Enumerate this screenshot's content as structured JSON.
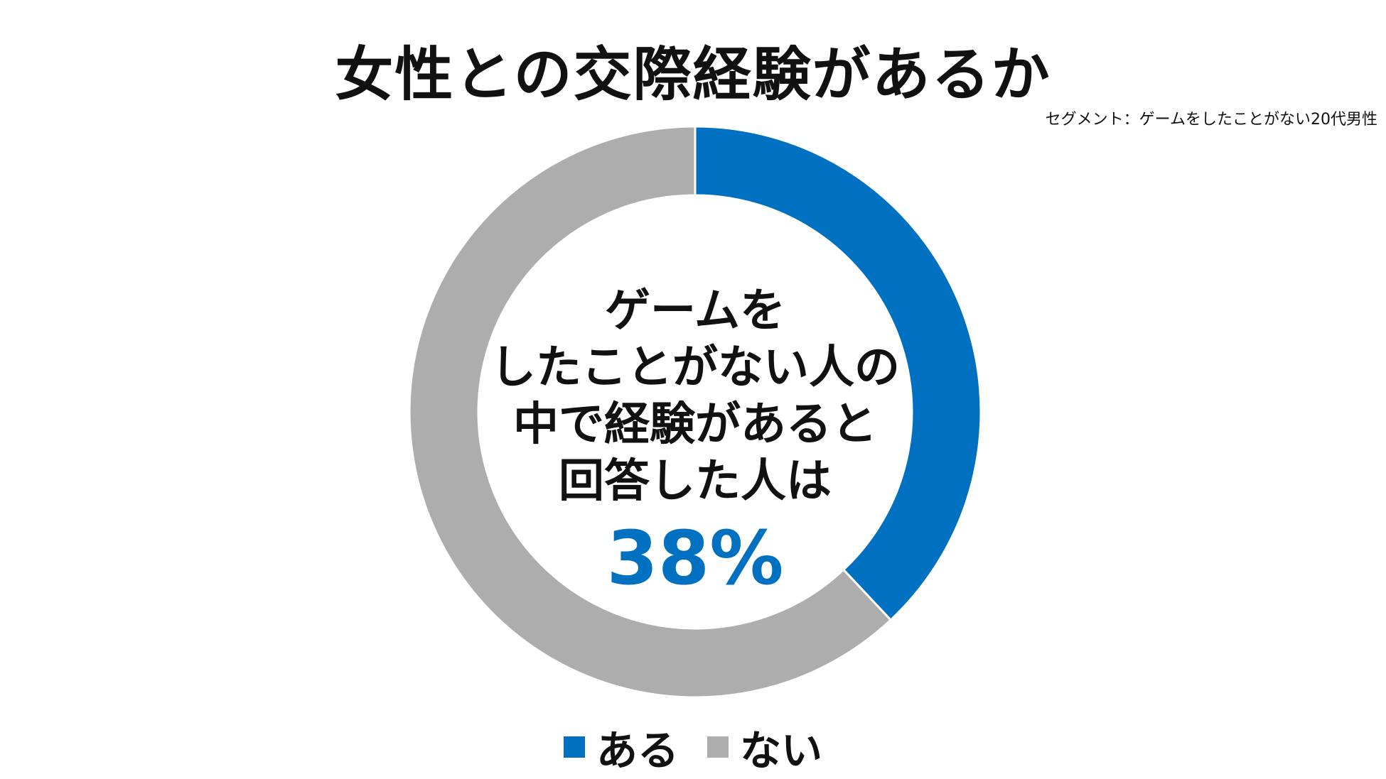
{
  "title": "女性との交際経験があるか",
  "segment_note": "セグメント：ゲームをしたことがない20代男性",
  "center_lines": [
    "ゲームを",
    "したことがない人の",
    "中で経験があると",
    "回答した人は"
  ],
  "center_percent": "38%",
  "colors": {
    "accent": "#0070C0",
    "secondary": "#ADADAD"
  },
  "chart_data": {
    "type": "pie",
    "variant": "donut",
    "title": "女性との交際経験があるか",
    "categories": [
      "ある",
      "ない"
    ],
    "values": [
      38,
      62
    ],
    "unit": "%",
    "colors": [
      "#0070C0",
      "#ADADAD"
    ],
    "legend": "bottom"
  }
}
